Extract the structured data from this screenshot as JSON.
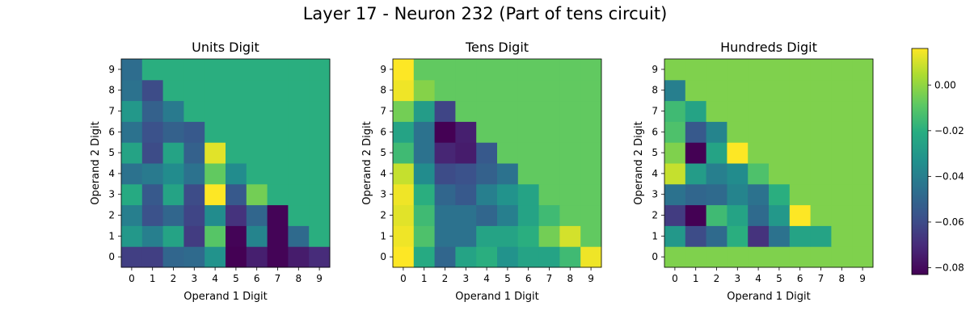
{
  "chart_data": {
    "type": "heatmap",
    "title": "Layer 17 - Neuron 232 (Part of tens circuit)",
    "colormap": "viridis",
    "vmin": -0.083,
    "vmax": 0.016,
    "colorbar": {
      "ticks": [
        0.0,
        -0.02,
        -0.04,
        -0.06,
        -0.08
      ],
      "tick_labels": [
        "0.00",
        "−0.02",
        "−0.04",
        "−0.06",
        "−0.08"
      ]
    },
    "panels": [
      {
        "title": "Units Digit",
        "xlabel": "Operand 1 Digit",
        "ylabel": "Operand 2 Digit",
        "x_ticks": [
          "0",
          "1",
          "2",
          "3",
          "4",
          "5",
          "6",
          "7",
          "8",
          "9"
        ],
        "y_ticks": [
          "0",
          "1",
          "2",
          "3",
          "4",
          "5",
          "6",
          "7",
          "8",
          "9"
        ],
        "matrix": [
          [
            -0.064,
            -0.064,
            -0.05,
            -0.048,
            -0.032,
            -0.083,
            -0.074,
            -0.082,
            -0.075,
            -0.07
          ],
          [
            -0.03,
            -0.04,
            -0.025,
            -0.065,
            -0.01,
            -0.082,
            -0.038,
            -0.082,
            -0.048,
            -0.02
          ],
          [
            -0.04,
            -0.058,
            -0.05,
            -0.062,
            -0.035,
            -0.068,
            -0.05,
            -0.082,
            -0.02,
            -0.02
          ],
          [
            -0.022,
            -0.055,
            -0.025,
            -0.06,
            0.016,
            -0.055,
            -0.005,
            -0.02,
            -0.02,
            -0.02
          ],
          [
            -0.045,
            -0.042,
            -0.035,
            -0.045,
            -0.008,
            -0.035,
            -0.02,
            -0.02,
            -0.02,
            -0.02
          ],
          [
            -0.025,
            -0.06,
            -0.025,
            -0.052,
            0.012,
            -0.02,
            -0.02,
            -0.02,
            -0.02,
            -0.02
          ],
          [
            -0.045,
            -0.058,
            -0.052,
            -0.055,
            -0.02,
            -0.02,
            -0.02,
            -0.02,
            -0.02,
            -0.02
          ],
          [
            -0.03,
            -0.052,
            -0.042,
            -0.02,
            -0.02,
            -0.02,
            -0.02,
            -0.02,
            -0.02,
            -0.02
          ],
          [
            -0.045,
            -0.06,
            -0.02,
            -0.02,
            -0.02,
            -0.02,
            -0.02,
            -0.02,
            -0.02,
            -0.02
          ],
          [
            -0.047,
            -0.02,
            -0.02,
            -0.02,
            -0.02,
            -0.02,
            -0.02,
            -0.02,
            -0.02,
            -0.02
          ]
        ]
      },
      {
        "title": "Tens Digit",
        "xlabel": "Operand 1 Digit",
        "ylabel": "Operand 2 Digit",
        "x_ticks": [
          "0",
          "1",
          "2",
          "3",
          "4",
          "5",
          "6",
          "7",
          "8",
          "9"
        ],
        "y_ticks": [
          "0",
          "1",
          "2",
          "3",
          "4",
          "5",
          "6",
          "7",
          "8",
          "9"
        ],
        "matrix": [
          [
            0.016,
            -0.022,
            -0.05,
            -0.025,
            -0.02,
            -0.032,
            -0.025,
            -0.025,
            -0.015,
            0.014
          ],
          [
            0.014,
            -0.012,
            -0.045,
            -0.045,
            -0.025,
            -0.025,
            -0.02,
            -0.005,
            0.01,
            -0.008
          ],
          [
            0.012,
            -0.015,
            -0.045,
            -0.045,
            -0.05,
            -0.04,
            -0.025,
            -0.015,
            -0.008,
            -0.008
          ],
          [
            0.014,
            -0.02,
            -0.05,
            -0.055,
            -0.04,
            -0.032,
            -0.025,
            -0.008,
            -0.008,
            -0.008
          ],
          [
            0.008,
            -0.035,
            -0.06,
            -0.058,
            -0.052,
            -0.045,
            -0.008,
            -0.008,
            -0.008,
            -0.008
          ],
          [
            -0.015,
            -0.045,
            -0.072,
            -0.075,
            -0.055,
            -0.008,
            -0.008,
            -0.008,
            -0.008,
            -0.008
          ],
          [
            -0.025,
            -0.045,
            -0.083,
            -0.074,
            -0.008,
            -0.008,
            -0.008,
            -0.008,
            -0.008,
            -0.008
          ],
          [
            -0.005,
            -0.028,
            -0.062,
            -0.008,
            -0.008,
            -0.008,
            -0.008,
            -0.008,
            -0.008,
            -0.008
          ],
          [
            0.014,
            -0.002,
            -0.008,
            -0.008,
            -0.008,
            -0.008,
            -0.008,
            -0.008,
            -0.008,
            -0.008
          ],
          [
            0.016,
            -0.008,
            -0.008,
            -0.008,
            -0.008,
            -0.008,
            -0.008,
            -0.008,
            -0.008,
            -0.008
          ]
        ]
      },
      {
        "title": "Hundreds Digit",
        "xlabel": "Operand 1 Digit",
        "ylabel": "Operand 2 Digit",
        "x_ticks": [
          "0",
          "1",
          "2",
          "3",
          "4",
          "5",
          "6",
          "7",
          "8",
          "9"
        ],
        "y_ticks": [
          "0",
          "1",
          "2",
          "3",
          "4",
          "5",
          "6",
          "7",
          "8",
          "9"
        ],
        "matrix": [
          [
            -0.003,
            -0.003,
            -0.003,
            -0.003,
            -0.003,
            -0.003,
            -0.003,
            -0.003,
            -0.003,
            -0.003
          ],
          [
            -0.03,
            -0.06,
            -0.048,
            -0.02,
            -0.068,
            -0.045,
            -0.025,
            -0.025,
            -0.003,
            -0.003
          ],
          [
            -0.065,
            -0.083,
            -0.015,
            -0.025,
            -0.048,
            -0.03,
            0.016,
            -0.003,
            -0.003,
            -0.003
          ],
          [
            -0.045,
            -0.05,
            -0.048,
            -0.038,
            -0.045,
            -0.02,
            -0.003,
            -0.003,
            -0.003,
            -0.003
          ],
          [
            0.008,
            -0.028,
            -0.04,
            -0.035,
            -0.012,
            -0.003,
            -0.003,
            -0.003,
            -0.003,
            -0.003
          ],
          [
            -0.003,
            -0.083,
            -0.025,
            0.016,
            -0.003,
            -0.003,
            -0.003,
            -0.003,
            -0.003,
            -0.003
          ],
          [
            -0.012,
            -0.055,
            -0.038,
            -0.003,
            -0.003,
            -0.003,
            -0.003,
            -0.003,
            -0.003,
            -0.003
          ],
          [
            -0.015,
            -0.025,
            -0.003,
            -0.003,
            -0.003,
            -0.003,
            -0.003,
            -0.003,
            -0.003,
            -0.003
          ],
          [
            -0.04,
            -0.003,
            -0.003,
            -0.003,
            -0.003,
            -0.003,
            -0.003,
            -0.003,
            -0.003,
            -0.003
          ],
          [
            -0.003,
            -0.003,
            -0.003,
            -0.003,
            -0.003,
            -0.003,
            -0.003,
            -0.003,
            -0.003,
            -0.003
          ]
        ]
      }
    ]
  }
}
